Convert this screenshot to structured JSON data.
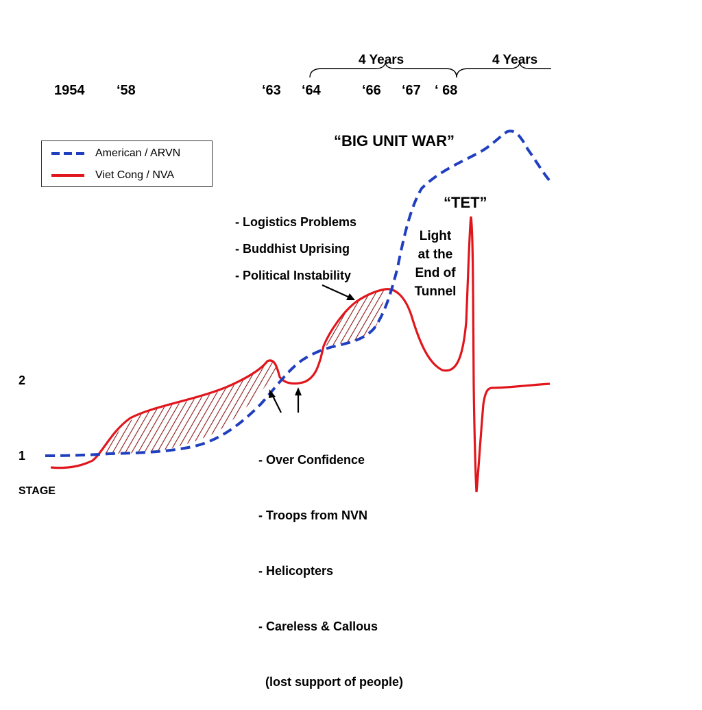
{
  "timeline": {
    "years": [
      "1954",
      "‘58",
      "‘63",
      "‘64",
      "‘66",
      "‘67",
      "‘ 68"
    ],
    "spans": [
      "4 Years",
      "4 Years"
    ]
  },
  "legend": {
    "american": {
      "label": "American / ARVN",
      "color": "#1f3fbf"
    },
    "vietcong": {
      "label": "Viet Cong / NVA",
      "color": "#e0161c"
    }
  },
  "labels": {
    "big_unit_war": "“BIG UNIT WAR”",
    "tet": "“TET”",
    "light_tunnel": [
      "Light",
      "at the",
      "End of",
      "Tunnel"
    ],
    "problems": [
      "- Logistics Problems",
      "- Buddhist Uprising",
      "- Political Instability"
    ],
    "causes": [
      "- Over Confidence",
      "- Troops from NVN",
      "- Helicopters",
      "- Careless & Callous",
      "  (lost support of people)"
    ]
  },
  "axis": {
    "stage_label": "STAGE",
    "stage_ticks": [
      "2",
      "1"
    ]
  }
}
